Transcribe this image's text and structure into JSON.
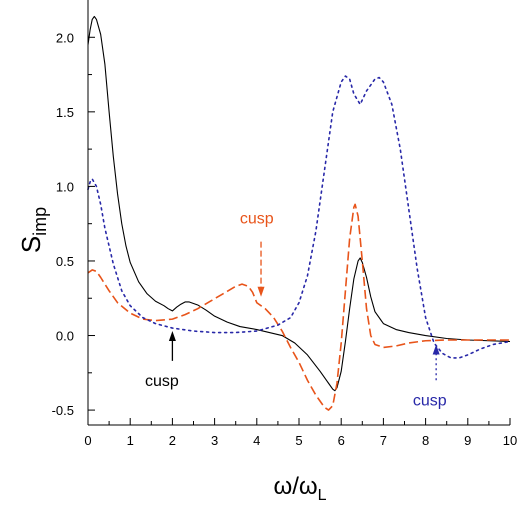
{
  "chart_data": {
    "type": "line",
    "ylabel": "S",
    "ylabel_sub": "imp",
    "xlabel": "ω/ω",
    "xlabel_sub": "L",
    "xlim": [
      0,
      10
    ],
    "ylim": [
      -0.6,
      2.25
    ],
    "x_ticks": [
      0,
      1,
      2,
      3,
      4,
      5,
      6,
      7,
      8,
      9,
      10
    ],
    "x_tick_labels": [
      "0",
      "1",
      "2",
      "3",
      "4",
      "5",
      "6",
      "7",
      "8",
      "9",
      "10"
    ],
    "y_ticks": [
      -0.5,
      0.0,
      0.5,
      1.0,
      1.5,
      2.0
    ],
    "y_tick_labels": [
      "-0.5",
      "0.0",
      "0.5",
      "1.0",
      "1.5",
      "2.0"
    ],
    "grid": false,
    "series": [
      {
        "style": "solid",
        "color": "#000000",
        "points": [
          [
            0.0,
            1.95
          ],
          [
            0.05,
            2.05
          ],
          [
            0.1,
            2.12
          ],
          [
            0.15,
            2.14
          ],
          [
            0.2,
            2.12
          ],
          [
            0.3,
            2.02
          ],
          [
            0.4,
            1.82
          ],
          [
            0.5,
            1.5
          ],
          [
            0.6,
            1.2
          ],
          [
            0.7,
            0.95
          ],
          [
            0.8,
            0.75
          ],
          [
            0.9,
            0.6
          ],
          [
            1.0,
            0.49
          ],
          [
            1.2,
            0.36
          ],
          [
            1.4,
            0.28
          ],
          [
            1.6,
            0.23
          ],
          [
            1.8,
            0.2
          ],
          [
            1.9,
            0.18
          ],
          [
            2.0,
            0.165
          ],
          [
            2.1,
            0.19
          ],
          [
            2.2,
            0.21
          ],
          [
            2.3,
            0.225
          ],
          [
            2.4,
            0.225
          ],
          [
            2.6,
            0.205
          ],
          [
            2.8,
            0.17
          ],
          [
            3.0,
            0.13
          ],
          [
            3.3,
            0.09
          ],
          [
            3.6,
            0.06
          ],
          [
            4.0,
            0.04
          ],
          [
            4.3,
            0.02
          ],
          [
            4.6,
            0.0
          ],
          [
            4.9,
            -0.05
          ],
          [
            5.2,
            -0.13
          ],
          [
            5.5,
            -0.24
          ],
          [
            5.7,
            -0.32
          ],
          [
            5.8,
            -0.36
          ],
          [
            5.85,
            -0.37
          ],
          [
            5.9,
            -0.35
          ],
          [
            6.0,
            -0.24
          ],
          [
            6.1,
            -0.04
          ],
          [
            6.2,
            0.18
          ],
          [
            6.3,
            0.38
          ],
          [
            6.4,
            0.5
          ],
          [
            6.45,
            0.52
          ],
          [
            6.5,
            0.49
          ],
          [
            6.6,
            0.39
          ],
          [
            6.7,
            0.26
          ],
          [
            6.8,
            0.16
          ],
          [
            7.0,
            0.08
          ],
          [
            7.3,
            0.04
          ],
          [
            7.6,
            0.02
          ],
          [
            8.0,
            0.0
          ],
          [
            8.5,
            -0.02
          ],
          [
            9.0,
            -0.03
          ],
          [
            9.5,
            -0.035
          ],
          [
            10.0,
            -0.04
          ]
        ]
      },
      {
        "style": "dashed",
        "color": "#e8541a",
        "points": [
          [
            0.0,
            0.42
          ],
          [
            0.1,
            0.44
          ],
          [
            0.2,
            0.43
          ],
          [
            0.3,
            0.39
          ],
          [
            0.5,
            0.3
          ],
          [
            0.7,
            0.22
          ],
          [
            1.0,
            0.15
          ],
          [
            1.3,
            0.11
          ],
          [
            1.6,
            0.1
          ],
          [
            2.0,
            0.11
          ],
          [
            2.3,
            0.14
          ],
          [
            2.6,
            0.18
          ],
          [
            2.9,
            0.23
          ],
          [
            3.2,
            0.28
          ],
          [
            3.5,
            0.33
          ],
          [
            3.65,
            0.345
          ],
          [
            3.8,
            0.33
          ],
          [
            3.9,
            0.29
          ],
          [
            4.0,
            0.22
          ],
          [
            4.2,
            0.18
          ],
          [
            4.4,
            0.12
          ],
          [
            4.6,
            0.03
          ],
          [
            4.8,
            -0.08
          ],
          [
            5.0,
            -0.18
          ],
          [
            5.2,
            -0.3
          ],
          [
            5.4,
            -0.4
          ],
          [
            5.6,
            -0.48
          ],
          [
            5.7,
            -0.5
          ],
          [
            5.8,
            -0.47
          ],
          [
            5.9,
            -0.32
          ],
          [
            6.0,
            -0.05
          ],
          [
            6.1,
            0.3
          ],
          [
            6.2,
            0.65
          ],
          [
            6.3,
            0.86
          ],
          [
            6.33,
            0.88
          ],
          [
            6.4,
            0.8
          ],
          [
            6.5,
            0.5
          ],
          [
            6.6,
            0.18
          ],
          [
            6.7,
            0.0
          ],
          [
            6.8,
            -0.06
          ],
          [
            7.0,
            -0.08
          ],
          [
            7.3,
            -0.07
          ],
          [
            7.6,
            -0.05
          ],
          [
            8.0,
            -0.035
          ],
          [
            8.5,
            -0.03
          ],
          [
            9.0,
            -0.03
          ],
          [
            10.0,
            -0.03
          ]
        ]
      },
      {
        "style": "dotted",
        "color": "#2828a8",
        "points": [
          [
            0.0,
            0.98
          ],
          [
            0.05,
            1.03
          ],
          [
            0.1,
            1.05
          ],
          [
            0.2,
            1.0
          ],
          [
            0.3,
            0.88
          ],
          [
            0.4,
            0.72
          ],
          [
            0.6,
            0.48
          ],
          [
            0.8,
            0.3
          ],
          [
            1.0,
            0.2
          ],
          [
            1.3,
            0.12
          ],
          [
            1.6,
            0.08
          ],
          [
            2.0,
            0.05
          ],
          [
            2.5,
            0.03
          ],
          [
            3.0,
            0.02
          ],
          [
            3.5,
            0.02
          ],
          [
            4.0,
            0.03
          ],
          [
            4.5,
            0.07
          ],
          [
            4.8,
            0.12
          ],
          [
            5.0,
            0.22
          ],
          [
            5.2,
            0.4
          ],
          [
            5.4,
            0.7
          ],
          [
            5.6,
            1.1
          ],
          [
            5.8,
            1.5
          ],
          [
            6.0,
            1.7
          ],
          [
            6.1,
            1.74
          ],
          [
            6.2,
            1.72
          ],
          [
            6.3,
            1.62
          ],
          [
            6.45,
            1.55
          ],
          [
            6.6,
            1.64
          ],
          [
            6.8,
            1.72
          ],
          [
            6.9,
            1.73
          ],
          [
            7.0,
            1.7
          ],
          [
            7.2,
            1.55
          ],
          [
            7.4,
            1.25
          ],
          [
            7.6,
            0.85
          ],
          [
            7.8,
            0.45
          ],
          [
            8.0,
            0.12
          ],
          [
            8.2,
            -0.05
          ],
          [
            8.4,
            -0.12
          ],
          [
            8.6,
            -0.15
          ],
          [
            8.8,
            -0.15
          ],
          [
            9.0,
            -0.13
          ],
          [
            9.3,
            -0.09
          ],
          [
            9.6,
            -0.06
          ],
          [
            10.0,
            -0.04
          ]
        ]
      }
    ],
    "annotations": [
      {
        "text": "cusp",
        "color": "#e8541a",
        "text_x": 4.0,
        "text_y": 0.75,
        "arrow_from": [
          4.1,
          0.63
        ],
        "arrow_to": [
          4.1,
          0.26
        ],
        "arrow_style": "dashed"
      },
      {
        "text": "cusp",
        "color": "#000000",
        "text_x": 1.75,
        "text_y": -0.34,
        "arrow_from": [
          2.0,
          -0.17
        ],
        "arrow_to": [
          2.0,
          0.03
        ],
        "arrow_style": "solid"
      },
      {
        "text": "cusp",
        "color": "#2828a8",
        "text_x": 8.1,
        "text_y": -0.47,
        "arrow_from": [
          8.25,
          -0.3
        ],
        "arrow_to": [
          8.25,
          -0.06
        ],
        "arrow_style": "dotted"
      }
    ]
  }
}
